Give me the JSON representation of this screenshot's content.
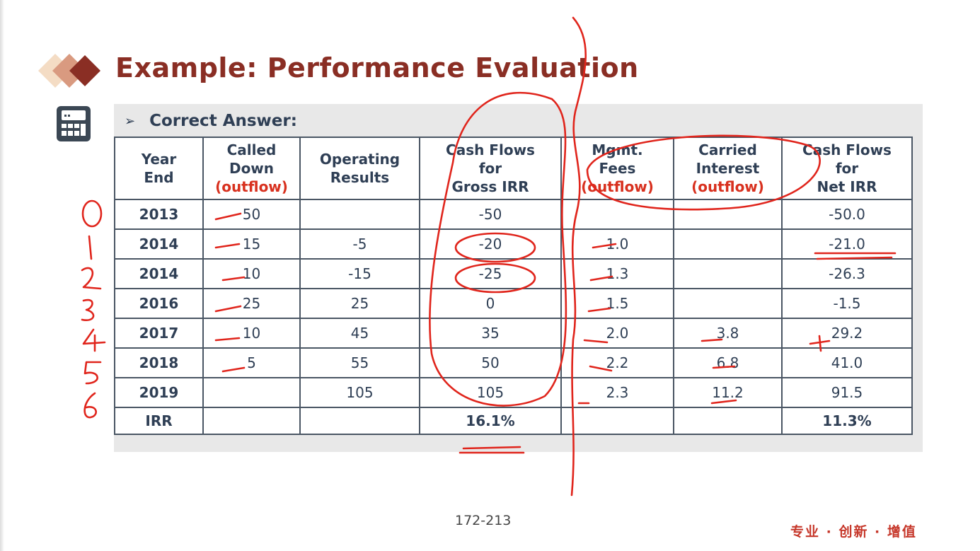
{
  "title": "Example: Performance Evaluation",
  "subheading": "Correct Answer:",
  "subheading_bullet": "➢",
  "table": {
    "headers": [
      {
        "lines": [
          "Year",
          "End"
        ],
        "tag": ""
      },
      {
        "lines": [
          "Called",
          "Down"
        ],
        "tag": "(outflow)"
      },
      {
        "lines": [
          "Operating",
          "Results"
        ],
        "tag": ""
      },
      {
        "lines": [
          "Cash Flows",
          "for",
          "Gross IRR"
        ],
        "tag": ""
      },
      {
        "lines": [
          "Mgmt.",
          "Fees"
        ],
        "tag": "(outflow)"
      },
      {
        "lines": [
          "Carried",
          "Interest"
        ],
        "tag": "(outflow)"
      },
      {
        "lines": [
          "Cash Flows",
          "for",
          "Net IRR"
        ],
        "tag": ""
      }
    ],
    "rows": [
      [
        "2013",
        "50",
        "",
        "-50",
        "",
        "",
        "-50.0"
      ],
      [
        "2014",
        "15",
        "-5",
        "-20",
        "1.0",
        "",
        "-21.0"
      ],
      [
        "2014",
        "10",
        "-15",
        "-25",
        "1.3",
        "",
        "-26.3"
      ],
      [
        "2016",
        "25",
        "25",
        "0",
        "1.5",
        "",
        "-1.5"
      ],
      [
        "2017",
        "10",
        "45",
        "35",
        "2.0",
        "3.8",
        "29.2"
      ],
      [
        "2018",
        "5",
        "55",
        "50",
        "2.2",
        "6.8",
        "41.0"
      ],
      [
        "2019",
        "",
        "105",
        "105",
        "2.3",
        "11.2",
        "91.5"
      ]
    ],
    "irr_row": [
      "IRR",
      "",
      "",
      "16.1%",
      "",
      "",
      "11.3%"
    ]
  },
  "page_number": "172-213",
  "slogan": "专业 · 创新 · 增值",
  "icons": [
    "diamond-bullets-icon",
    "calculator-icon"
  ],
  "colors": {
    "title": "#8a2e24",
    "table_text": "#2f3f55",
    "outflow_tag": "#d8301e",
    "annotation_ink": "#e0251c",
    "panel_bg": "#e8e8e8",
    "slogan": "#c6372a"
  }
}
